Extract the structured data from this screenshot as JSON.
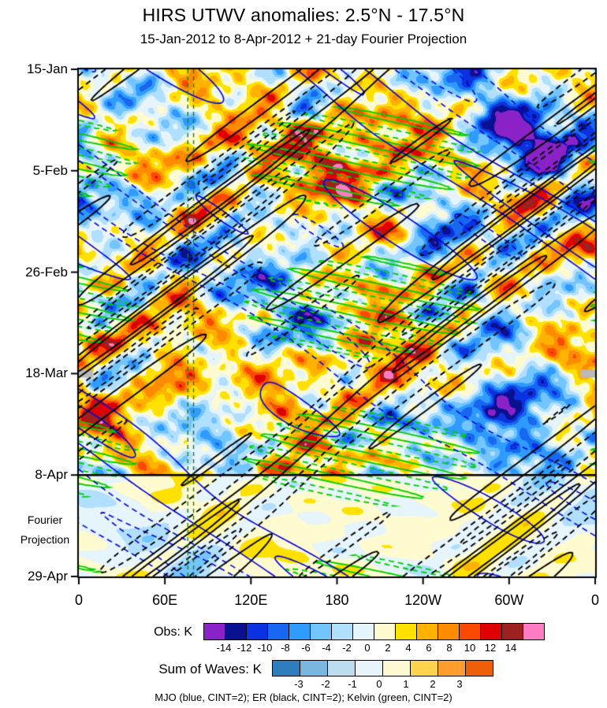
{
  "title": "HIRS UTWV anomalies: 2.5°N - 17.5°N",
  "subtitle": "15-Jan-2012 to 8-Apr-2012 + 21-day Fourier Projection",
  "fourier_label": {
    "line1": "Fourier",
    "line2": "Projection"
  },
  "caption": "MJO (blue, CINT=2); ER (black, CINT=2); Kelvin (green, CINT=2)",
  "chart_data": {
    "type": "heatmap",
    "description": "Hovmoller diagram (longitude vs time) of upper-tropospheric water vapor anomalies with equatorial wave contour overlays; observations above 8-Apr, Fourier wave projection below",
    "x_axis": {
      "tick_labels": [
        "0",
        "60E",
        "120E",
        "180",
        "120W",
        "60W",
        "0"
      ],
      "range_degrees_lon": [
        0,
        360
      ]
    },
    "y_axis": {
      "tick_labels": [
        "15-Jan",
        "5-Feb",
        "26-Feb",
        "18-Mar",
        "8-Apr",
        "29-Apr"
      ],
      "tick_interval_days": 21,
      "range_days": [
        0,
        105
      ]
    },
    "projection_boundary_label": "8-Apr",
    "obs_colorbar": {
      "label": "Obs: K",
      "tick_labels": [
        "-14",
        "-12",
        "-10",
        "-8",
        "-6",
        "-4",
        "-2",
        "0",
        "2",
        "4",
        "6",
        "8",
        "10",
        "12",
        "14"
      ],
      "levels": [
        -14,
        -12,
        -10,
        -8,
        -6,
        -4,
        -2,
        0,
        2,
        4,
        6,
        8,
        10,
        12,
        14
      ],
      "colors": [
        "#8b22c8",
        "#0a1191",
        "#0b31e0",
        "#1767f0",
        "#2f9bff",
        "#72c5ff",
        "#b0dfff",
        "#e6f4fb",
        "#fffbd0",
        "#ffe100",
        "#ffb300",
        "#ff8c00",
        "#fb4a00",
        "#df0000",
        "#9e2121",
        "#ff7bc4"
      ]
    },
    "waves_colorbar": {
      "label": "Sum of Waves: K",
      "tick_labels": [
        "-3",
        "-2",
        "-1",
        "0",
        "1",
        "2",
        "3"
      ],
      "levels": [
        -3,
        -2,
        -1,
        0,
        1,
        2,
        3
      ],
      "colors": [
        "#2d7dbf",
        "#7ab6e0",
        "#bcdcf0",
        "#e9f4fa",
        "#fdf9d2",
        "#ffd34e",
        "#ff9e2e",
        "#ef5f0a"
      ]
    },
    "overlays": [
      {
        "name": "MJO",
        "color": "#0000dd",
        "contour_interval": 2,
        "line_style_positive": "solid",
        "line_style_negative": "dashed",
        "direction": "eastward-slow"
      },
      {
        "name": "ER",
        "color": "#000000",
        "contour_interval": 2,
        "line_style_positive": "solid",
        "line_style_negative": "dashed",
        "direction": "westward"
      },
      {
        "name": "Kelvin",
        "color": "#00cf00",
        "contour_interval": 2,
        "line_style_positive": "solid",
        "line_style_negative": "dashed",
        "direction": "eastward-fast"
      }
    ],
    "reference_lines": {
      "projection_boundary": {
        "label": "8-Apr",
        "day": 84,
        "color": "#000000"
      },
      "vertical_dashed": {
        "lon_degrees": [
          76,
          80
        ],
        "color": "#1a7a1a"
      }
    },
    "missing_data": {
      "color": "#b9b9b9",
      "rows": [
        {
          "date": "18-Mar",
          "day": 63,
          "lon_ranges": [
            [
              0,
              10
            ],
            [
              350,
              360
            ]
          ]
        }
      ]
    },
    "hotspots": [
      {
        "lon": 178,
        "day": 19,
        "amp": 11,
        "sigma_lon": 30,
        "sigma_day": 6
      },
      {
        "lon": 208,
        "day": 61,
        "amp": 10,
        "sigma_lon": 24,
        "sigma_day": 5
      },
      {
        "lon": 66,
        "day": 62,
        "amp": 9,
        "sigma_lon": 16,
        "sigma_day": 5
      },
      {
        "lon": 310,
        "day": 13,
        "amp": -11,
        "sigma_lon": 26,
        "sigma_day": 6
      },
      {
        "lon": 300,
        "day": 74,
        "amp": -9,
        "sigma_lon": 22,
        "sigma_day": 6
      },
      {
        "lon": 252,
        "day": 30,
        "amp": -8,
        "sigma_lon": 20,
        "sigma_day": 6
      }
    ]
  }
}
